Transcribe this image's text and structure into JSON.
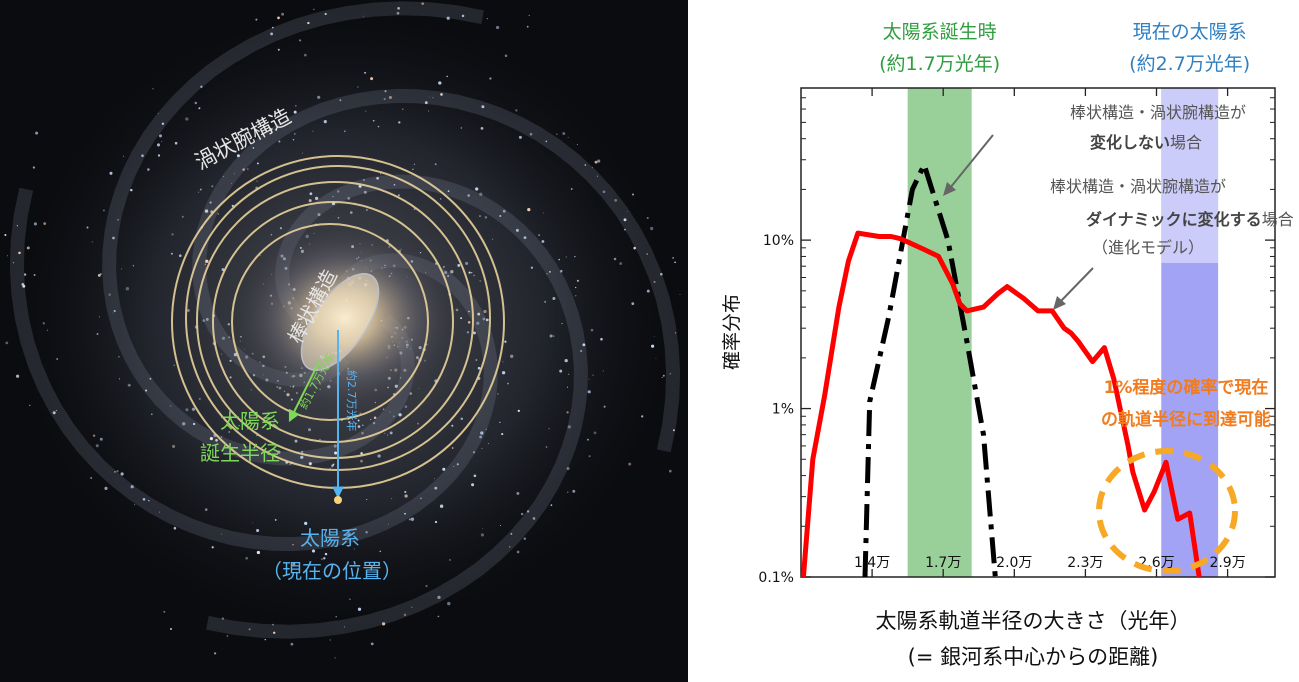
{
  "galaxy": {
    "spiral_label": "渦状腕構造",
    "bar_label": "棒状構造",
    "birth_radius_line1": "太陽系",
    "birth_radius_line2": "誕生半径",
    "birth_distance": "約1.7万光年",
    "current_distance": "約2.7万光年",
    "sun_line1": "太陽系",
    "sun_line2": "（現在の位置）",
    "colors": {
      "green": "#7ed957",
      "blue": "#56b4f0",
      "ring": "#e8d29a"
    }
  },
  "chart_data": {
    "type": "line",
    "scale_y": "log",
    "xlim": [
      1.1,
      3.1
    ],
    "ylim": [
      0.1,
      80
    ],
    "xticks": [
      1.4,
      1.7,
      2.0,
      2.3,
      2.6,
      2.9
    ],
    "xtick_labels": [
      "1.4万",
      "1.7万",
      "2.0万",
      "2.3万",
      "2.6万",
      "2.9万"
    ],
    "yticks": [
      0.1,
      1,
      10
    ],
    "ytick_labels": [
      "0.1%",
      "1%",
      "10%"
    ],
    "xlabel": "太陽系軌道半径の大きさ（光年）",
    "xlabel2": "(= 銀河系中心からの距離)",
    "ylabel": "確率分布",
    "bands": [
      {
        "name": "太陽系誕生時",
        "sub": "(約1.7万光年)",
        "x0": 1.55,
        "x1": 1.82,
        "color": "#94cd94",
        "label_color": "#2e9e3e"
      },
      {
        "name": "現在の太陽系",
        "sub": "(約2.7万光年)",
        "x0": 2.62,
        "x1": 2.86,
        "color": "#9e9ef5",
        "label_color": "#2f7fc1"
      }
    ],
    "series": [
      {
        "label_line1": "棒状構造・渦状腕構造が",
        "label_bold": "変化しない",
        "label_tail": "場合",
        "color": "#000000",
        "style": "dashdot",
        "x": [
          1.37,
          1.39,
          1.47,
          1.57,
          1.62,
          1.72,
          1.8,
          1.87,
          1.92
        ],
        "y": [
          0.1,
          1.1,
          3.5,
          20,
          28,
          10,
          2.5,
          0.7,
          0.1
        ]
      },
      {
        "label_line1": "棒状構造・渦状腕構造が",
        "label_bold": "ダイナミックに変化する",
        "label_tail": "場合",
        "label_sub": "（進化モデル）",
        "color": "#ff0000",
        "style": "solid",
        "x": [
          1.11,
          1.15,
          1.2,
          1.26,
          1.3,
          1.34,
          1.43,
          1.48,
          1.52,
          1.62,
          1.68,
          1.74,
          1.77,
          1.8,
          1.87,
          1.93,
          1.97,
          2.04,
          2.1,
          2.16,
          2.21,
          2.24,
          2.27,
          2.33,
          2.38,
          2.42,
          2.48,
          2.5,
          2.55,
          2.59,
          2.64,
          2.69,
          2.74,
          2.78
        ],
        "y": [
          0.1,
          0.5,
          1.2,
          4.0,
          7.5,
          11,
          10.5,
          10.5,
          10.2,
          8.8,
          8.0,
          5.5,
          4.2,
          3.8,
          4.0,
          4.8,
          5.3,
          4.5,
          3.8,
          3.8,
          3.0,
          2.8,
          2.5,
          1.9,
          2.3,
          1.5,
          0.6,
          0.42,
          0.25,
          0.32,
          0.48,
          0.22,
          0.24,
          0.1
        ]
      }
    ],
    "annotation_line1": "1%程度の確率で現在",
    "annotation_line2": "の軌道半径に到達可能",
    "annotation_color": "#f07c1f",
    "highlight_color": "#f7a824"
  }
}
